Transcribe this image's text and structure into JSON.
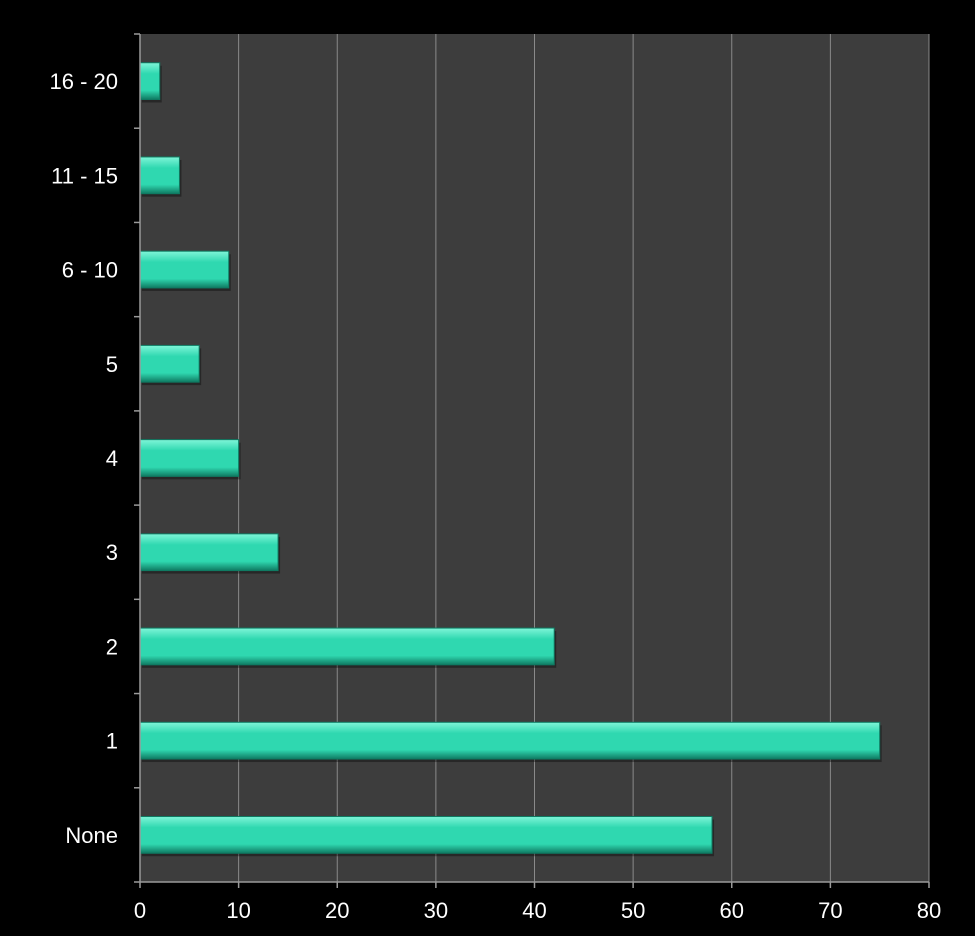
{
  "chart_data": {
    "type": "bar",
    "orientation": "horizontal",
    "categories": [
      "None",
      "1",
      "2",
      "3",
      "4",
      "5",
      "6 - 10",
      "11 - 15",
      "16 - 20"
    ],
    "values": [
      58,
      75,
      42,
      14,
      10,
      6,
      9,
      4,
      2
    ],
    "title": "",
    "xlabel": "",
    "ylabel": "",
    "xlim": [
      0,
      80
    ],
    "xticks": [
      0,
      10,
      20,
      30,
      40,
      50,
      60,
      70,
      80
    ],
    "grid": "vertical",
    "legend": "none",
    "colors": {
      "page_background": "#000000",
      "plot_background": "#3d3d3d",
      "gridline": "#8a8a8a",
      "axis": "#9a9a9a",
      "bar_fill": "#2fd8b0",
      "bar_highlight": "#7ff5d8",
      "bar_shadow": "#0f7a62",
      "text": "#ffffff"
    }
  }
}
